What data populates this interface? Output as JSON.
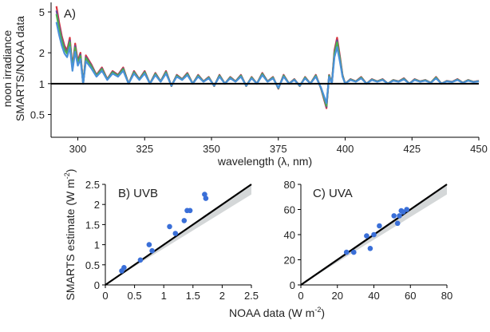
{
  "chart_data": [
    {
      "id": "A",
      "type": "line",
      "panel_label": "A)",
      "xlabel": "wavelength (λ, nm)",
      "ylabel_line1": "noon irradiance",
      "ylabel_line2": "SMARTS/NOAA data",
      "yscale": "log",
      "xlim": [
        290,
        450
      ],
      "ylim": [
        0.3,
        6.2
      ],
      "x_ticks": [
        300,
        325,
        350,
        375,
        400,
        425,
        450
      ],
      "y_ticks": [
        0.5,
        1,
        2,
        5
      ],
      "y_tick_labels": [
        "0.5",
        "1",
        "2",
        "5"
      ],
      "reference_line": 1,
      "series": [
        {
          "name": "series-red",
          "color": "#d9363e"
        },
        {
          "name": "series-purple",
          "color": "#6a4c9c"
        },
        {
          "name": "series-green",
          "color": "#4daf4a"
        },
        {
          "name": "series-blue",
          "color": "#4a90d9"
        }
      ],
      "x": [
        292,
        293,
        294,
        295,
        296,
        297,
        298,
        299,
        300,
        301,
        302,
        303,
        305,
        307,
        309,
        311,
        313,
        315,
        317,
        319,
        321,
        323,
        325,
        327,
        329,
        331,
        333,
        335,
        337,
        339,
        341,
        343,
        345,
        347,
        349,
        351,
        353,
        355,
        357,
        359,
        361,
        363,
        365,
        367,
        369,
        371,
        373,
        375,
        377,
        379,
        381,
        383,
        385,
        387,
        389,
        391,
        393,
        394,
        395,
        396,
        397,
        398,
        399,
        400,
        402,
        404,
        406,
        408,
        410,
        412,
        414,
        416,
        418,
        420,
        422,
        424,
        426,
        428,
        430,
        432,
        434,
        436,
        438,
        440,
        442,
        444,
        446,
        448,
        450
      ],
      "base": [
        5.0,
        3.6,
        2.7,
        2.2,
        2.0,
        2.6,
        1.4,
        2.3,
        1.6,
        1.9,
        1.0,
        1.8,
        1.5,
        1.2,
        1.4,
        1.1,
        1.3,
        1.2,
        1.4,
        1.0,
        1.3,
        1.1,
        1.3,
        1.0,
        1.25,
        1.05,
        1.3,
        0.95,
        1.2,
        1.1,
        1.25,
        1.0,
        1.2,
        1.05,
        1.15,
        0.95,
        1.2,
        1.0,
        1.15,
        1.05,
        1.2,
        0.95,
        1.15,
        1.0,
        1.25,
        1.05,
        1.15,
        0.9,
        1.2,
        1.0,
        1.1,
        0.95,
        1.15,
        1.0,
        1.2,
        0.9,
        0.6,
        1.2,
        1.0,
        2.0,
        2.6,
        1.8,
        1.2,
        1.0,
        1.1,
        1.05,
        1.15,
        1.0,
        1.1,
        1.05,
        1.1,
        1.0,
        1.08,
        1.05,
        1.12,
        1.0,
        1.1,
        1.05,
        1.08,
        1.02,
        1.15,
        1.0,
        1.06,
        1.04,
        1.1,
        1.02,
        1.08,
        1.04,
        1.06
      ],
      "series_scale": [
        1.08,
        1.02,
        0.97,
        0.86
      ]
    },
    {
      "id": "B",
      "type": "scatter",
      "panel_label": "B) UVB",
      "xlabel": "",
      "ylabel": "SMARTS estimate (W m",
      "ylabel_sup": "-2",
      "ylabel_end": ")",
      "xlim": [
        0,
        2.5
      ],
      "ylim": [
        0,
        2.5
      ],
      "x_ticks": [
        0,
        0.5,
        1,
        1.5,
        2,
        2.5
      ],
      "x_tick_labels": [
        "0",
        "0.5",
        "1",
        "1.5",
        "2",
        "2.5"
      ],
      "y_ticks": [
        0,
        0.5,
        1,
        1.5,
        2,
        2.5
      ],
      "y_tick_labels": [
        "0",
        "0.5",
        "1",
        "1.5",
        "2",
        "2.5"
      ],
      "fit_line": [
        [
          0,
          0
        ],
        [
          2.5,
          2.5
        ]
      ],
      "band": [
        [
          0.1,
          0.1,
          0.1
        ],
        [
          2.5,
          2.25,
          2.75
        ]
      ],
      "points": [
        [
          0.28,
          0.35
        ],
        [
          0.32,
          0.43
        ],
        [
          0.6,
          0.62
        ],
        [
          0.75,
          1.0
        ],
        [
          0.8,
          0.85
        ],
        [
          1.1,
          1.45
        ],
        [
          1.2,
          1.28
        ],
        [
          1.35,
          1.6
        ],
        [
          1.4,
          1.85
        ],
        [
          1.45,
          1.85
        ],
        [
          1.7,
          2.25
        ],
        [
          1.72,
          2.15
        ]
      ],
      "point_color": "#3a6fd8"
    },
    {
      "id": "C",
      "type": "scatter",
      "panel_label": "C) UVA",
      "xlabel": "",
      "xlim": [
        0,
        80
      ],
      "ylim": [
        0,
        80
      ],
      "x_ticks": [
        0,
        20,
        40,
        60,
        80
      ],
      "x_tick_labels": [
        "0",
        "20",
        "40",
        "60",
        "80"
      ],
      "y_ticks": [
        0,
        20,
        40,
        60,
        80
      ],
      "y_tick_labels": [
        "0",
        "20",
        "40",
        "60",
        "80"
      ],
      "fit_line": [
        [
          0,
          0
        ],
        [
          80,
          80
        ]
      ],
      "band": [
        [
          5,
          4.5,
          5.5
        ],
        [
          80,
          72,
          88
        ]
      ],
      "points": [
        [
          25,
          26
        ],
        [
          29,
          26
        ],
        [
          36,
          39
        ],
        [
          38,
          29
        ],
        [
          40,
          40
        ],
        [
          43,
          47
        ],
        [
          51,
          55
        ],
        [
          53,
          49
        ],
        [
          54,
          55
        ],
        [
          55,
          59
        ],
        [
          56,
          58
        ],
        [
          58,
          60
        ]
      ],
      "point_color": "#3a6fd8"
    }
  ],
  "shared_xlabel_main": "NOAA data (W m",
  "shared_xlabel_sup": "-2",
  "shared_xlabel_end": ")"
}
